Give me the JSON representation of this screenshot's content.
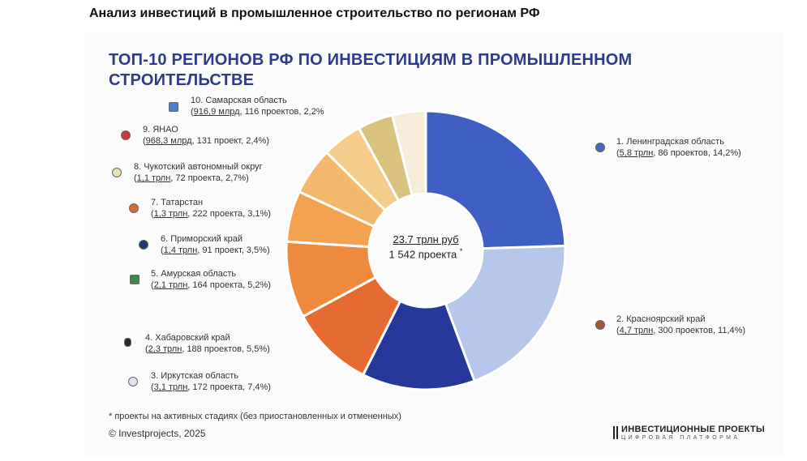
{
  "page": {
    "heading": "Анализ инвестиций в промышленное строительство по регионам РФ"
  },
  "chart": {
    "title": "ТОП-10 РЕГИОНОВ РФ ПО ИНВЕСТИЦИЯМ В ПРОМЫШЛЕННОМ СТРОИТЕЛЬСТВЕ",
    "center_total": "23.7 трлн руб",
    "center_count": "1 542 проекта",
    "center_mark": "*"
  },
  "legend": [
    {
      "name": "1. Ленинградская область",
      "amount": "5,8 трлн",
      "rest": ", 86 проектов, 14,2%)",
      "color": "#4a66b8",
      "icon": "leningrad-oblast-emblem-icon"
    },
    {
      "name": "2. Красноярский край",
      "amount": "4,7 трлн",
      "rest": ", 300 проектов, 11,4%)",
      "color": "#a3573a",
      "icon": "krasnoyarsk-krai-emblem-icon"
    },
    {
      "name": "3. Иркутская область",
      "amount": "3,1 трлн",
      "rest": ", 172 проекта, 7,4%)",
      "color": "#dfe4ee",
      "icon": "irkutsk-oblast-emblem-icon"
    },
    {
      "name": "4. Хабаровский край",
      "amount": "2,3 трлн",
      "rest": ", 188 проектов, 5,5%)",
      "color": "#2a2a2a",
      "icon": "khabarovsk-krai-emblem-icon"
    },
    {
      "name": "5. Амурская область",
      "amount": "2,1 трлн",
      "rest": ", 164 проекта, 5,2%)",
      "color": "#3f8a4a",
      "icon": "amur-oblast-emblem-icon"
    },
    {
      "name": "6. Приморский край",
      "amount": "1,4 трлн",
      "rest": ", 91 проект, 3,5%)",
      "color": "#1f3d6b",
      "icon": "primorsky-krai-emblem-icon"
    },
    {
      "name": "7. Татарстан",
      "amount": "1,3 трлн",
      "rest": ", 222 проекта, 3,1%)",
      "color": "#d76a2c",
      "icon": "tatarstan-emblem-icon"
    },
    {
      "name": "8. Чукотский автономный округ",
      "amount": "1,1 трлн",
      "rest": ", 72 проекта, 2,7%)",
      "color": "#e7e0b5",
      "icon": "chukotka-emblem-icon"
    },
    {
      "name": "9. ЯНАО",
      "amount": "968,3 млрд",
      "rest": ", 131 проект, 2,4%)",
      "color": "#c8383f",
      "icon": "yamalo-nenets-emblem-icon"
    },
    {
      "name": "10. Самарская область",
      "amount": "916,9 млрд",
      "rest": ", 116 проектов, 2,2%",
      "color": "#4a7fd0",
      "icon": "samara-oblast-emblem-icon"
    }
  ],
  "footnote": "* проекты на активных стадиях (без приостановленных и отмененных)",
  "copyright": "© Investprojects, 2025",
  "brand": {
    "name": "ИНВЕСТИЦИОННЫЕ ПРОЕКТЫ",
    "sub": "ЦИФРОВАЯ ПЛАТФОРМА"
  },
  "chart_data": {
    "type": "pie",
    "title": "ТОП-10 РЕГИОНОВ РФ ПО ИНВЕСТИЦИЯМ В ПРОМЫШЛЕННОМ СТРОИТЕЛЬСТВЕ",
    "unit": "трлн руб",
    "categories": [
      "1. Ленинградская область",
      "2. Красноярский край",
      "3. Иркутская область",
      "4. Хабаровский край",
      "5. Амурская область",
      "6. Приморский край",
      "7. Татарстан",
      "8. Чукотский автономный округ",
      "9. ЯНАО",
      "10. Самарская область"
    ],
    "values": [
      5.8,
      4.7,
      3.1,
      2.3,
      2.1,
      1.4,
      1.3,
      1.1,
      0.9683,
      0.9169
    ],
    "colors": [
      "#3f5fc4",
      "#b6c6ea",
      "#26399a",
      "#e56b32",
      "#ee8a3e",
      "#f3a24f",
      "#f4b86d",
      "#f6cc8c",
      "#d8c27e",
      "#f7ecd9"
    ],
    "projects": [
      86,
      300,
      172,
      188,
      164,
      91,
      222,
      72,
      131,
      116
    ],
    "shares_percent": [
      14.2,
      11.4,
      7.4,
      5.5,
      5.2,
      3.5,
      3.1,
      2.7,
      2.4,
      2.2
    ]
  }
}
